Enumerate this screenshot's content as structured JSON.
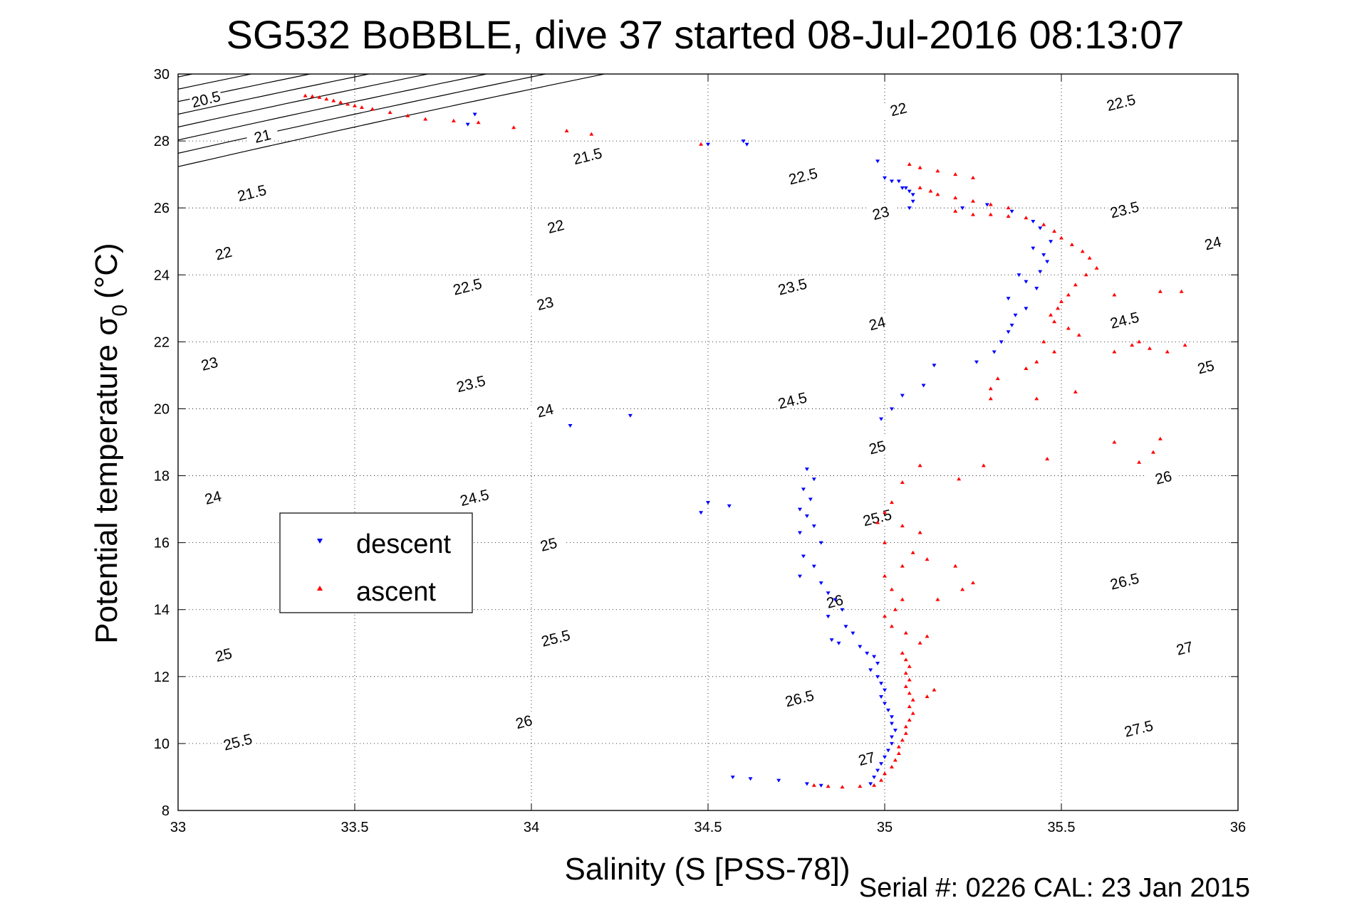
{
  "chart_data": {
    "type": "scatter",
    "title": "SG532 BoBBLE, dive 37 started 08-Jul-2016 08:13:07",
    "xlabel": "Salinity (S [PSS-78])",
    "ylabel_main": "Potential temperature σ",
    "ylabel_sub": "0",
    "ylabel_unit": "(°C)",
    "xlim": [
      33,
      36
    ],
    "ylim": [
      8,
      30
    ],
    "x_ticks": [
      "33",
      "33.5",
      "34",
      "34.5",
      "35",
      "35.5",
      "36"
    ],
    "y_ticks": [
      "8",
      "10",
      "12",
      "14",
      "16",
      "18",
      "20",
      "22",
      "24",
      "26",
      "28",
      "30"
    ],
    "grid": true,
    "legend_position": "center-left",
    "footer": "Serial #: 0226  CAL: 23 Jan 2015",
    "colors": {
      "descent": "#0000ff",
      "ascent": "#ff0000",
      "contour": "#000000"
    },
    "contours": [
      {
        "label": "20.5",
        "offset": -8.6
      },
      {
        "label": "21",
        "offset": -8.1
      },
      {
        "label": "21.5",
        "offset": -7.6
      },
      {
        "label": "22",
        "offset": -7.1
      },
      {
        "label": "22.5",
        "offset": -6.6
      },
      {
        "label": "23",
        "offset": -6.1
      },
      {
        "label": "23.5",
        "offset": -5.6
      },
      {
        "label": "24",
        "offset": -5.1
      },
      {
        "label": "24.5",
        "offset": -4.6
      },
      {
        "label": "25",
        "offset": -4.1
      },
      {
        "label": "25.5",
        "offset": -3.6
      },
      {
        "label": "26",
        "offset": -3.1
      },
      {
        "label": "26.5",
        "offset": -2.6
      },
      {
        "label": "27",
        "offset": -2.1
      },
      {
        "label": "27.5",
        "offset": -1.6
      }
    ],
    "contour_labels": [
      {
        "text": "20.5",
        "x": 33.08,
        "y": 29.2
      },
      {
        "text": "21",
        "x": 33.24,
        "y": 28.1
      },
      {
        "text": "21.5",
        "x": 33.21,
        "y": 26.4
      },
      {
        "text": "22",
        "x": 33.13,
        "y": 24.6
      },
      {
        "text": "23",
        "x": 33.09,
        "y": 21.3
      },
      {
        "text": "24",
        "x": 33.1,
        "y": 17.3
      },
      {
        "text": "25",
        "x": 33.13,
        "y": 12.6
      },
      {
        "text": "25.5",
        "x": 33.17,
        "y": 10.0
      },
      {
        "text": "21.5",
        "x": 34.16,
        "y": 27.5
      },
      {
        "text": "22",
        "x": 34.07,
        "y": 25.4
      },
      {
        "text": "22.5",
        "x": 33.82,
        "y": 23.6
      },
      {
        "text": "23",
        "x": 34.04,
        "y": 23.1
      },
      {
        "text": "23.5",
        "x": 33.83,
        "y": 20.7
      },
      {
        "text": "24",
        "x": 34.04,
        "y": 19.9
      },
      {
        "text": "24.5",
        "x": 33.84,
        "y": 17.3
      },
      {
        "text": "25",
        "x": 34.05,
        "y": 15.9
      },
      {
        "text": "25.5",
        "x": 34.07,
        "y": 13.1
      },
      {
        "text": "26",
        "x": 33.98,
        "y": 10.6
      },
      {
        "text": "22",
        "x": 35.04,
        "y": 28.9
      },
      {
        "text": "22.5",
        "x": 34.77,
        "y": 26.9
      },
      {
        "text": "23",
        "x": 34.99,
        "y": 25.8
      },
      {
        "text": "23.5",
        "x": 34.74,
        "y": 23.6
      },
      {
        "text": "24",
        "x": 34.98,
        "y": 22.5
      },
      {
        "text": "24.5",
        "x": 34.74,
        "y": 20.2
      },
      {
        "text": "25",
        "x": 34.98,
        "y": 18.8
      },
      {
        "text": "25.5",
        "x": 34.98,
        "y": 16.7
      },
      {
        "text": "26",
        "x": 34.86,
        "y": 14.2
      },
      {
        "text": "26.5",
        "x": 34.76,
        "y": 11.3
      },
      {
        "text": "27",
        "x": 34.95,
        "y": 9.5
      },
      {
        "text": "22.5",
        "x": 35.67,
        "y": 29.1
      },
      {
        "text": "23.5",
        "x": 35.68,
        "y": 25.9
      },
      {
        "text": "24",
        "x": 35.93,
        "y": 24.9
      },
      {
        "text": "24.5",
        "x": 35.68,
        "y": 22.6
      },
      {
        "text": "25",
        "x": 35.91,
        "y": 21.2
      },
      {
        "text": "26",
        "x": 35.79,
        "y": 17.9
      },
      {
        "text": "26.5",
        "x": 35.68,
        "y": 14.8
      },
      {
        "text": "27",
        "x": 35.85,
        "y": 12.8
      },
      {
        "text": "27.5",
        "x": 35.72,
        "y": 10.4
      }
    ],
    "series": [
      {
        "name": "descent",
        "marker": "triangle-down",
        "points": [
          [
            33.84,
            28.8
          ],
          [
            33.82,
            28.5
          ],
          [
            34.6,
            28.0
          ],
          [
            34.61,
            27.9
          ],
          [
            34.5,
            27.9
          ],
          [
            34.98,
            27.4
          ],
          [
            35.0,
            26.9
          ],
          [
            35.02,
            26.8
          ],
          [
            35.04,
            26.8
          ],
          [
            35.05,
            26.6
          ],
          [
            35.06,
            26.6
          ],
          [
            35.07,
            26.5
          ],
          [
            35.08,
            26.4
          ],
          [
            35.08,
            26.2
          ],
          [
            35.07,
            26.0
          ],
          [
            35.22,
            26.0
          ],
          [
            35.29,
            26.1
          ],
          [
            35.36,
            25.9
          ],
          [
            35.42,
            25.6
          ],
          [
            35.44,
            25.4
          ],
          [
            35.47,
            25.0
          ],
          [
            35.42,
            24.8
          ],
          [
            35.45,
            24.6
          ],
          [
            35.46,
            24.4
          ],
          [
            35.44,
            24.1
          ],
          [
            35.4,
            23.8
          ],
          [
            35.43,
            23.6
          ],
          [
            35.38,
            24.0
          ],
          [
            35.35,
            23.3
          ],
          [
            35.4,
            23.0
          ],
          [
            35.37,
            22.8
          ],
          [
            35.36,
            22.5
          ],
          [
            35.35,
            22.3
          ],
          [
            35.33,
            22.0
          ],
          [
            35.31,
            21.7
          ],
          [
            35.26,
            21.4
          ],
          [
            35.14,
            21.3
          ],
          [
            35.11,
            20.7
          ],
          [
            35.05,
            20.4
          ],
          [
            35.02,
            20.0
          ],
          [
            34.11,
            19.5
          ],
          [
            34.28,
            19.8
          ],
          [
            34.99,
            19.7
          ],
          [
            34.78,
            18.2
          ],
          [
            34.8,
            17.9
          ],
          [
            34.77,
            17.6
          ],
          [
            34.79,
            17.3
          ],
          [
            34.76,
            17.0
          ],
          [
            34.78,
            16.8
          ],
          [
            34.8,
            16.5
          ],
          [
            34.76,
            16.3
          ],
          [
            34.82,
            16.0
          ],
          [
            34.77,
            15.6
          ],
          [
            34.8,
            15.3
          ],
          [
            34.76,
            15.0
          ],
          [
            34.82,
            14.8
          ],
          [
            34.84,
            14.5
          ],
          [
            34.48,
            16.9
          ],
          [
            34.5,
            17.2
          ],
          [
            34.56,
            17.1
          ],
          [
            34.86,
            14.3
          ],
          [
            34.88,
            14.0
          ],
          [
            34.84,
            13.8
          ],
          [
            34.89,
            13.5
          ],
          [
            34.91,
            13.3
          ],
          [
            34.85,
            13.1
          ],
          [
            34.87,
            13.0
          ],
          [
            34.93,
            12.9
          ],
          [
            34.95,
            12.7
          ],
          [
            34.97,
            12.6
          ],
          [
            34.98,
            12.4
          ],
          [
            34.96,
            12.2
          ],
          [
            34.98,
            12.0
          ],
          [
            34.99,
            11.8
          ],
          [
            35.0,
            11.6
          ],
          [
            34.99,
            11.4
          ],
          [
            35.0,
            11.2
          ],
          [
            35.01,
            11.0
          ],
          [
            35.02,
            10.8
          ],
          [
            35.02,
            10.6
          ],
          [
            35.03,
            10.4
          ],
          [
            35.02,
            10.2
          ],
          [
            35.02,
            10.0
          ],
          [
            35.01,
            9.8
          ],
          [
            35.0,
            9.6
          ],
          [
            34.99,
            9.4
          ],
          [
            34.98,
            9.2
          ],
          [
            34.97,
            9.0
          ],
          [
            34.96,
            8.8
          ],
          [
            34.57,
            9.0
          ],
          [
            34.62,
            8.95
          ],
          [
            34.7,
            8.9
          ],
          [
            34.78,
            8.8
          ],
          [
            34.82,
            8.75
          ]
        ]
      },
      {
        "name": "ascent",
        "marker": "triangle-up",
        "points": [
          [
            33.36,
            29.35
          ],
          [
            33.38,
            29.33
          ],
          [
            33.4,
            29.3
          ],
          [
            33.42,
            29.25
          ],
          [
            33.44,
            29.2
          ],
          [
            33.46,
            29.15
          ],
          [
            33.48,
            29.1
          ],
          [
            33.5,
            29.05
          ],
          [
            33.52,
            29.0
          ],
          [
            33.55,
            28.95
          ],
          [
            33.6,
            28.85
          ],
          [
            33.65,
            28.75
          ],
          [
            33.7,
            28.65
          ],
          [
            33.78,
            28.6
          ],
          [
            33.85,
            28.55
          ],
          [
            33.95,
            28.4
          ],
          [
            34.1,
            28.3
          ],
          [
            34.17,
            28.2
          ],
          [
            34.48,
            27.9
          ],
          [
            35.07,
            27.3
          ],
          [
            35.1,
            27.2
          ],
          [
            35.15,
            27.1
          ],
          [
            35.2,
            27.0
          ],
          [
            35.25,
            26.9
          ],
          [
            35.1,
            26.6
          ],
          [
            35.13,
            26.5
          ],
          [
            35.15,
            26.4
          ],
          [
            35.2,
            26.3
          ],
          [
            35.25,
            26.2
          ],
          [
            35.3,
            26.1
          ],
          [
            35.35,
            26.0
          ],
          [
            35.2,
            25.9
          ],
          [
            35.25,
            25.8
          ],
          [
            35.3,
            25.8
          ],
          [
            35.35,
            25.75
          ],
          [
            35.4,
            25.7
          ],
          [
            35.45,
            25.5
          ],
          [
            35.48,
            25.3
          ],
          [
            35.5,
            25.1
          ],
          [
            35.53,
            24.9
          ],
          [
            35.56,
            24.7
          ],
          [
            35.58,
            24.5
          ],
          [
            35.6,
            24.2
          ],
          [
            35.57,
            24.0
          ],
          [
            35.54,
            23.7
          ],
          [
            35.52,
            23.4
          ],
          [
            35.5,
            23.2
          ],
          [
            35.49,
            23.0
          ],
          [
            35.47,
            22.8
          ],
          [
            35.48,
            22.6
          ],
          [
            35.52,
            22.4
          ],
          [
            35.55,
            22.2
          ],
          [
            35.45,
            22.0
          ],
          [
            35.48,
            21.7
          ],
          [
            35.43,
            21.4
          ],
          [
            35.4,
            21.2
          ],
          [
            35.32,
            20.9
          ],
          [
            35.3,
            20.6
          ],
          [
            35.3,
            20.3
          ],
          [
            35.43,
            20.3
          ],
          [
            35.54,
            20.5
          ],
          [
            35.65,
            21.7
          ],
          [
            35.7,
            21.9
          ],
          [
            35.75,
            21.8
          ],
          [
            35.8,
            21.7
          ],
          [
            35.85,
            21.9
          ],
          [
            35.72,
            22.0
          ],
          [
            35.65,
            23.4
          ],
          [
            35.78,
            23.5
          ],
          [
            35.84,
            23.5
          ],
          [
            35.78,
            19.1
          ],
          [
            35.76,
            18.7
          ],
          [
            35.72,
            18.4
          ],
          [
            35.65,
            19.0
          ],
          [
            35.1,
            18.3
          ],
          [
            35.05,
            17.8
          ],
          [
            35.02,
            17.2
          ],
          [
            35.0,
            16.9
          ],
          [
            34.98,
            16.6
          ],
          [
            35.05,
            16.5
          ],
          [
            35.1,
            16.3
          ],
          [
            35.0,
            16.0
          ],
          [
            35.08,
            15.7
          ],
          [
            35.12,
            15.5
          ],
          [
            35.2,
            15.3
          ],
          [
            35.25,
            14.8
          ],
          [
            35.05,
            15.3
          ],
          [
            35.0,
            15.0
          ],
          [
            35.02,
            14.6
          ],
          [
            35.05,
            14.3
          ],
          [
            35.03,
            14.0
          ],
          [
            35.0,
            13.8
          ],
          [
            35.02,
            13.5
          ],
          [
            35.06,
            13.3
          ],
          [
            35.1,
            13.0
          ],
          [
            35.12,
            13.2
          ],
          [
            35.15,
            14.3
          ],
          [
            35.22,
            14.6
          ],
          [
            35.05,
            12.7
          ],
          [
            35.06,
            12.5
          ],
          [
            35.07,
            12.3
          ],
          [
            35.06,
            12.1
          ],
          [
            35.07,
            11.9
          ],
          [
            35.06,
            11.7
          ],
          [
            35.07,
            11.5
          ],
          [
            35.08,
            11.3
          ],
          [
            35.07,
            11.1
          ],
          [
            35.08,
            10.9
          ],
          [
            35.07,
            10.7
          ],
          [
            35.06,
            10.5
          ],
          [
            35.06,
            10.3
          ],
          [
            35.05,
            10.1
          ],
          [
            35.04,
            9.9
          ],
          [
            35.04,
            9.7
          ],
          [
            35.03,
            9.5
          ],
          [
            35.02,
            9.3
          ],
          [
            35.0,
            9.1
          ],
          [
            34.99,
            8.9
          ],
          [
            34.97,
            8.75
          ],
          [
            34.93,
            8.72
          ],
          [
            34.88,
            8.7
          ],
          [
            34.84,
            8.72
          ],
          [
            34.8,
            8.75
          ],
          [
            35.12,
            11.4
          ],
          [
            35.14,
            11.6
          ],
          [
            35.46,
            18.5
          ],
          [
            35.28,
            18.3
          ],
          [
            35.21,
            17.9
          ]
        ]
      }
    ]
  }
}
